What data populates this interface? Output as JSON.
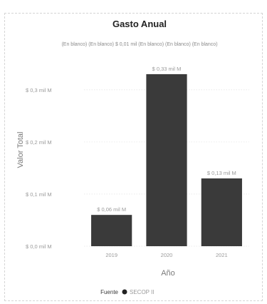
{
  "chart_data": {
    "type": "bar",
    "title": "Gasto Anual",
    "legend_header": "(En blanco) (En blanco) $ 0,01 mil (En blanco) (En blanco) (En blanco)",
    "xlabel": "Año",
    "ylabel": "Valor Total",
    "categories": [
      "2019",
      "2020",
      "2021"
    ],
    "values": [
      0.06,
      0.33,
      0.13
    ],
    "value_labels": [
      "$ 0,06 mil M",
      "$ 0,33 mil M",
      "$ 0,13 mil M"
    ],
    "ylim": [
      0,
      0.36
    ],
    "y_ticks": [
      {
        "value": 0.0,
        "label": "$ 0,0 mil M"
      },
      {
        "value": 0.1,
        "label": "$ 0,1 mil M"
      },
      {
        "value": 0.2,
        "label": "$ 0,2 mil M"
      },
      {
        "value": 0.3,
        "label": "$ 0,3 mil M"
      }
    ],
    "bar_color": "#3a3a3a",
    "grid": true,
    "source": {
      "label": "Fuente",
      "value": "SECOP II",
      "marker_color": "#222222"
    }
  }
}
